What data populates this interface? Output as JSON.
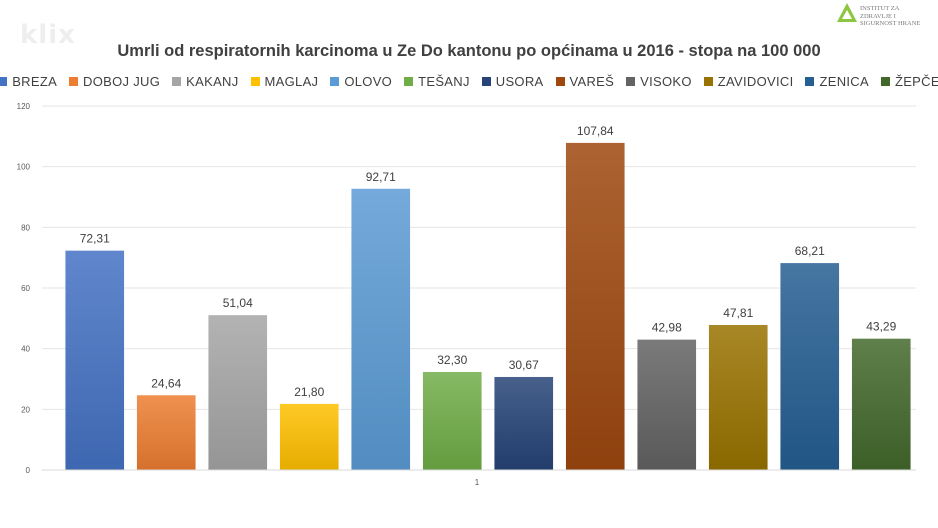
{
  "watermark": "klix",
  "logo": {
    "text": "INSTITUT ZA ZDRAVLJE I SIGURNOST HRANE"
  },
  "chart_data": {
    "type": "bar",
    "title": "Umrli od respiratornih karcinoma u Ze Do kantonu po općinama u 2016 - stopa na 100 000",
    "xlabel": "",
    "ylabel": "",
    "categories": [
      "1"
    ],
    "series": [
      {
        "name": "BREZA",
        "values": [
          72.31
        ],
        "label": "72,31",
        "color": "#4472C4"
      },
      {
        "name": "DOBOJ JUG",
        "values": [
          24.64
        ],
        "label": "24,64",
        "color": "#ED7D31"
      },
      {
        "name": "KAKANJ",
        "values": [
          51.04
        ],
        "label": "51,04",
        "color": "#A5A5A5"
      },
      {
        "name": "MAGLAJ",
        "values": [
          21.8
        ],
        "label": "21,80",
        "color": "#FFC000"
      },
      {
        "name": "OLOVO",
        "values": [
          92.71
        ],
        "label": "92,71",
        "color": "#5B9BD5"
      },
      {
        "name": "TEŠANJ",
        "values": [
          32.3
        ],
        "label": "32,30",
        "color": "#70AD47"
      },
      {
        "name": "USORA",
        "values": [
          30.67
        ],
        "label": "30,67",
        "color": "#264478"
      },
      {
        "name": "VAREŠ",
        "values": [
          107.84
        ],
        "label": "107,84",
        "color": "#9E480E"
      },
      {
        "name": "VISOKO",
        "values": [
          42.98
        ],
        "label": "42,98",
        "color": "#636363"
      },
      {
        "name": "ZAVIDOVICI",
        "values": [
          47.81
        ],
        "label": "47,81",
        "color": "#997300"
      },
      {
        "name": "ZENICA",
        "values": [
          68.21
        ],
        "label": "68,21",
        "color": "#255E91"
      },
      {
        "name": "ŽEPČE",
        "values": [
          43.29
        ],
        "label": "43,29",
        "color": "#43682B"
      }
    ],
    "ylim": [
      0,
      120
    ],
    "yticks": [
      "0",
      "20",
      "40",
      "60",
      "80",
      "100",
      "120"
    ],
    "grid": true,
    "legend_position": "top"
  }
}
